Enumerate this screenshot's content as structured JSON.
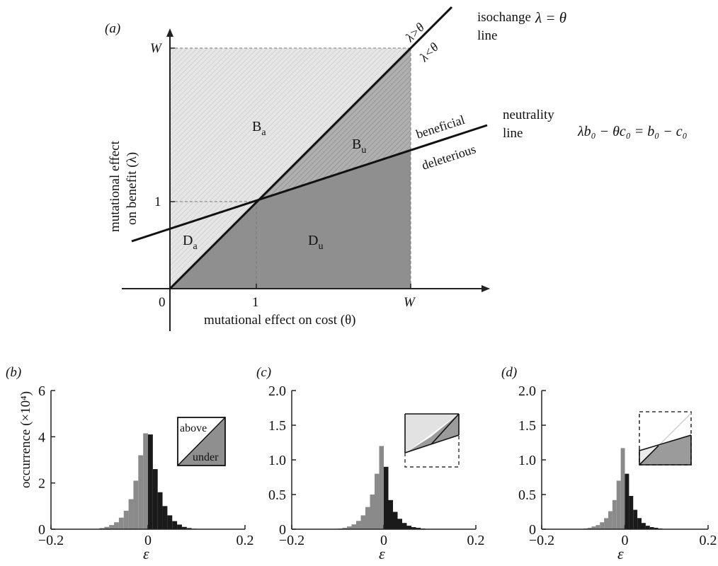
{
  "panel_a": {
    "label": "(a)",
    "xlabel": "mutational effect on cost (θ)",
    "ylabel_line1": "mutational effect",
    "ylabel_line2": "on benefit (λ)",
    "x_ticks": [
      "0",
      "1",
      "W"
    ],
    "y_ticks": [
      "1",
      "W"
    ],
    "isochange_label_1": "isochange",
    "isochange_label_2": "line",
    "isochange_eq": "λ = θ",
    "lambda_gt": "λ>θ",
    "lambda_lt": "λ<θ",
    "neutrality_label_1": "neutrality",
    "neutrality_label_2": "line",
    "neutrality_eq": "λb₀ − θc₀ = b₀ − c₀",
    "beneficial": "beneficial",
    "deleterious": "deleterious",
    "regions": [
      {
        "main": "B",
        "sub": "a"
      },
      {
        "main": "B",
        "sub": "u"
      },
      {
        "main": "D",
        "sub": "a"
      },
      {
        "main": "D",
        "sub": "u"
      }
    ],
    "colors": {
      "light_fill": "#e3e3e3",
      "dark_fill": "#8c8c8c",
      "mid_fill": "#aaaaaa"
    }
  },
  "hist_common": {
    "xlabel": "ε",
    "x_ticks": [
      "−0.2",
      "0",
      "0.2"
    ],
    "ylabel": "occurrence (×10⁴)",
    "bin_starts": [
      -0.1,
      -0.09,
      -0.08,
      -0.07,
      -0.06,
      -0.05,
      -0.04,
      -0.03,
      -0.02,
      -0.01,
      0.0,
      0.01,
      0.02,
      0.03,
      0.04,
      0.05,
      0.06,
      0.07,
      0.08,
      0.09
    ],
    "bin_width": 0.01,
    "colors": {
      "negative": "#8a8a8a",
      "positive": "#1a1a1a"
    }
  },
  "chart_data": [
    {
      "type": "bar",
      "panel": "(b)",
      "ylabel": "occurrence (×10⁴)",
      "xlabel": "ε",
      "xlim": [
        -0.2,
        0.2
      ],
      "ylim": [
        0,
        6
      ],
      "y_ticks": [
        "0",
        "2",
        "4",
        "6"
      ],
      "values": [
        0.05,
        0.1,
        0.18,
        0.3,
        0.5,
        0.8,
        1.3,
        2.1,
        3.2,
        4.15,
        4.1,
        2.6,
        1.6,
        1.0,
        0.6,
        0.35,
        0.2,
        0.1,
        0.05,
        0.02
      ],
      "inset": {
        "above": "above",
        "under": "under"
      }
    },
    {
      "type": "bar",
      "panel": "(c)",
      "xlabel": "ε",
      "xlim": [
        -0.2,
        0.2
      ],
      "ylim": [
        0,
        2
      ],
      "y_ticks": [
        "0",
        "0.5",
        "1.0",
        "1.5",
        "2.0"
      ],
      "values": [
        0.01,
        0.02,
        0.04,
        0.07,
        0.12,
        0.2,
        0.32,
        0.5,
        0.8,
        1.2,
        0.9,
        0.42,
        0.25,
        0.15,
        0.09,
        0.05,
        0.03,
        0.02,
        0.01,
        0.005
      ]
    },
    {
      "type": "bar",
      "panel": "(d)",
      "xlabel": "ε",
      "xlim": [
        -0.2,
        0.2
      ],
      "ylim": [
        0,
        2
      ],
      "y_ticks": [
        "0",
        "0.5",
        "1.0",
        "1.5",
        "2.0"
      ],
      "values": [
        0.01,
        0.02,
        0.04,
        0.06,
        0.1,
        0.16,
        0.26,
        0.42,
        0.7,
        1.17,
        0.8,
        0.48,
        0.28,
        0.16,
        0.09,
        0.05,
        0.03,
        0.02,
        0.01,
        0.005
      ]
    }
  ]
}
